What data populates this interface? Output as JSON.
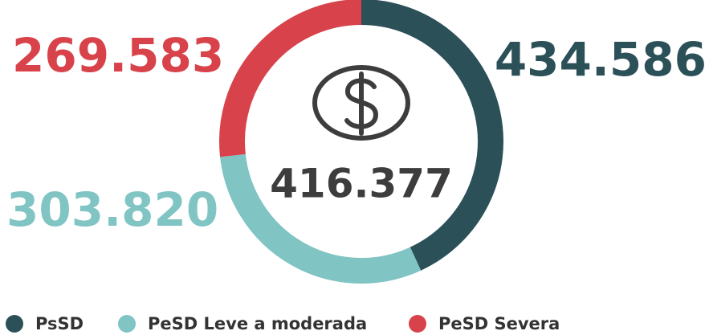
{
  "chart_data": {
    "type": "donut",
    "categories": [
      "PsSD",
      "PeSD Leve a moderada",
      "PeSD Severa"
    ],
    "values": [
      434586,
      303820,
      269583
    ],
    "value_labels": [
      "434.586",
      "303.820",
      "269.583"
    ],
    "colors": [
      "#2c5058",
      "#80c4c4",
      "#d8434b"
    ],
    "center_label": "416.377",
    "legend": "bottom"
  }
}
